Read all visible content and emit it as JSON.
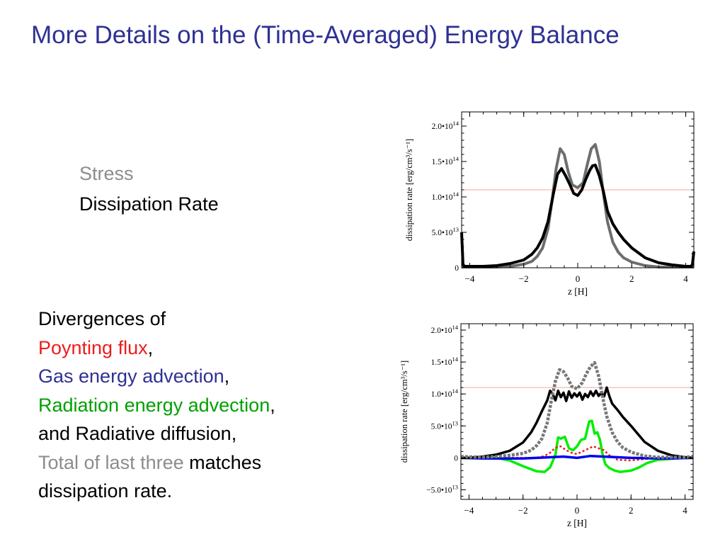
{
  "slide": {
    "title": "More Details on the (Time-Averaged) Energy Balance",
    "legend_top": {
      "stress": "Stress",
      "dissipation": "Dissipation Rate"
    },
    "legend_bottom": {
      "divergences_of": "Divergences of",
      "poynting": "Poynting flux",
      "gas": "Gas energy advection",
      "radiation": "Radiation energy advection",
      "comma": ",",
      "diffusion_line": "and Radiative diffusion,",
      "total": "Total of last three",
      "matches": " matches",
      "dissipation_rate": "dissipation rate."
    }
  },
  "chart_data": [
    {
      "type": "line",
      "xlabel": "z [H]",
      "ylabel": "dissipation rate [erg/cm³/s⁻¹]",
      "xlim": [
        -4.3,
        4.3
      ],
      "ylim": [
        0,
        220000000000000.0
      ],
      "xticks": [
        -4,
        -2,
        0,
        2,
        4
      ],
      "xtick_labels": [
        "−4",
        "−2",
        "0",
        "2",
        "4"
      ],
      "yticks": [
        0,
        50000000000000.0,
        100000000000000.0,
        150000000000000.0,
        200000000000000.0
      ],
      "ytick_labels": [
        {
          "mantissa": "0",
          "exp": ""
        },
        {
          "mantissa": "5.0•10",
          "exp": "13"
        },
        {
          "mantissa": "1.0•10",
          "exp": "14"
        },
        {
          "mantissa": "1.5•10",
          "exp": "14"
        },
        {
          "mantissa": "2.0•10",
          "exp": "14"
        }
      ],
      "reference_line": {
        "y": 110000000000000.0,
        "color": "#f4a7a3"
      },
      "series": [
        {
          "color": "#6e6e6e",
          "width": 4,
          "x": [
            -4.3,
            -3.5,
            -3.0,
            -2.5,
            -2.0,
            -1.7,
            -1.5,
            -1.3,
            -1.1,
            -0.95,
            -0.8,
            -0.65,
            -0.5,
            -0.35,
            -0.2,
            0.0,
            0.2,
            0.35,
            0.5,
            0.65,
            0.8,
            0.95,
            1.1,
            1.3,
            1.5,
            1.7,
            2.0,
            2.5,
            3.0,
            3.5,
            4.1,
            4.3
          ],
          "y": [
            1000000000000.0,
            1000000000000.0,
            1000000000000.0,
            2000000000000.0,
            5000000000000.0,
            9000000000000.0,
            16000000000000.0,
            28000000000000.0,
            55000000000000.0,
            95000000000000.0,
            140000000000000.0,
            168000000000000.0,
            160000000000000.0,
            135000000000000.0,
            117000000000000.0,
            113000000000000.0,
            120000000000000.0,
            145000000000000.0,
            168000000000000.0,
            174000000000000.0,
            150000000000000.0,
            105000000000000.0,
            65000000000000.0,
            36000000000000.0,
            22000000000000.0,
            14000000000000.0,
            8000000000000.0,
            3000000000000.0,
            1000000000000.0,
            1000000000000.0,
            1000000000000.0,
            1000000000000.0
          ]
        },
        {
          "color": "#000000",
          "width": 4,
          "x": [
            -4.3,
            -4.25,
            -4.2,
            -3.5,
            -3.0,
            -2.5,
            -2.0,
            -1.7,
            -1.5,
            -1.3,
            -1.1,
            -0.9,
            -0.75,
            -0.6,
            -0.45,
            -0.3,
            -0.15,
            0.0,
            0.15,
            0.3,
            0.45,
            0.55,
            0.65,
            0.8,
            0.95,
            1.1,
            1.3,
            1.5,
            1.7,
            2.0,
            2.5,
            3.0,
            3.5,
            4.0,
            4.2,
            4.25,
            4.3
          ],
          "y": [
            50000000000000.0,
            5000000000000.0,
            2000000000000.0,
            2000000000000.0,
            3000000000000.0,
            6000000000000.0,
            11000000000000.0,
            19000000000000.0,
            28000000000000.0,
            42000000000000.0,
            65000000000000.0,
            105000000000000.0,
            132000000000000.0,
            140000000000000.0,
            130000000000000.0,
            118000000000000.0,
            105000000000000.0,
            102000000000000.0,
            110000000000000.0,
            125000000000000.0,
            138000000000000.0,
            144000000000000.0,
            145000000000000.0,
            130000000000000.0,
            108000000000000.0,
            80000000000000.0,
            62000000000000.0,
            50000000000000.0,
            40000000000000.0,
            28000000000000.0,
            14000000000000.0,
            7000000000000.0,
            4000000000000.0,
            2000000000000.0,
            2000000000000.0,
            5000000000000.0,
            23000000000000.0
          ]
        }
      ]
    },
    {
      "type": "line",
      "xlabel": "z [H]",
      "ylabel": "dissipation rate [erg/cm³/s⁻¹]",
      "xlim": [
        -4.3,
        4.3
      ],
      "ylim": [
        -65000000000000.0,
        210000000000000.0
      ],
      "xticks": [
        -4,
        -2,
        0,
        2,
        4
      ],
      "xtick_labels": [
        "−4",
        "−2",
        "0",
        "2",
        "4"
      ],
      "yticks": [
        -50000000000000.0,
        0,
        50000000000000.0,
        100000000000000.0,
        150000000000000.0,
        200000000000000.0
      ],
      "ytick_labels": [
        {
          "mantissa": "−5.0•10",
          "exp": "13"
        },
        {
          "mantissa": "0",
          "exp": ""
        },
        {
          "mantissa": "5.0•10",
          "exp": "13"
        },
        {
          "mantissa": "1.0•10",
          "exp": "14"
        },
        {
          "mantissa": "1.5•10",
          "exp": "14"
        },
        {
          "mantissa": "2.0•10",
          "exp": "14"
        }
      ],
      "reference_line": {
        "y": 110000000000000.0,
        "color": "#f4a7a3"
      },
      "series": [
        {
          "color": "#00ee00",
          "width": 3.5,
          "x": [
            -4.3,
            -3.0,
            -2.5,
            -2.0,
            -1.5,
            -1.2,
            -1.0,
            -0.8,
            -0.7,
            -0.6,
            -0.45,
            -0.3,
            -0.15,
            0.0,
            0.15,
            0.3,
            0.45,
            0.55,
            0.65,
            0.75,
            0.85,
            0.95,
            1.05,
            1.2,
            1.4,
            1.6,
            1.8,
            2.0,
            2.3,
            2.6,
            3.0,
            3.3,
            3.6,
            4.0,
            4.3
          ],
          "y": [
            0,
            0,
            -4000000000000.0,
            -13000000000000.0,
            -21000000000000.0,
            -22000000000000.0,
            -15000000000000.0,
            5000000000000.0,
            32000000000000.0,
            30000000000000.0,
            33000000000000.0,
            15000000000000.0,
            12000000000000.0,
            18000000000000.0,
            28000000000000.0,
            30000000000000.0,
            57000000000000.0,
            58000000000000.0,
            38000000000000.0,
            40000000000000.0,
            28000000000000.0,
            5000000000000.0,
            -10000000000000.0,
            -16000000000000.0,
            -20000000000000.0,
            -22000000000000.0,
            -21000000000000.0,
            -20000000000000.0,
            -15000000000000.0,
            -8000000000000.0,
            -3000000000000.0,
            -2000000000000.0,
            -1000000000000.0,
            0,
            0
          ]
        },
        {
          "color": "#ee1c1c",
          "width": 2.5,
          "dash": "3,3",
          "x": [
            -4.3,
            -3.0,
            -2.0,
            -1.5,
            -1.2,
            -1.0,
            -0.8,
            -0.6,
            -0.4,
            -0.2,
            0.0,
            0.2,
            0.4,
            0.6,
            0.8,
            1.0,
            1.2,
            1.5,
            2.0,
            3.0,
            4.3
          ],
          "y": [
            2000000000000.0,
            0,
            0,
            0,
            3000000000000.0,
            8000000000000.0,
            16000000000000.0,
            18000000000000.0,
            12000000000000.0,
            8000000000000.0,
            6000000000000.0,
            10000000000000.0,
            14000000000000.0,
            18000000000000.0,
            15000000000000.0,
            12000000000000.0,
            4000000000000.0,
            -3000000000000.0,
            -4000000000000.0,
            0,
            0
          ]
        },
        {
          "color": "#0000ee",
          "width": 3.5,
          "x": [
            -4.3,
            -3.5,
            -3.0,
            -2.0,
            -1.5,
            -1.0,
            -0.5,
            0.0,
            0.5,
            1.0,
            1.5,
            2.0,
            3.0,
            3.5,
            4.3
          ],
          "y": [
            0,
            -1000000000000.0,
            -1000000000000.0,
            -1000000000000.0,
            0,
            1000000000000.0,
            2000000000000.0,
            0,
            3000000000000.0,
            2000000000000.0,
            1000000000000.0,
            0,
            -1000000000000.0,
            -1000000000000.0,
            0
          ]
        },
        {
          "color": "#000000",
          "width": 3.5,
          "x": [
            -4.3,
            -4.0,
            -3.5,
            -3.0,
            -2.5,
            -2.0,
            -1.7,
            -1.5,
            -1.3,
            -1.1,
            -1.0,
            -0.9,
            -0.8,
            -0.7,
            -0.6,
            -0.5,
            -0.4,
            -0.3,
            -0.2,
            -0.1,
            0.0,
            0.1,
            0.2,
            0.3,
            0.4,
            0.5,
            0.6,
            0.7,
            0.8,
            0.9,
            1.0,
            1.1,
            1.2,
            1.3,
            1.5,
            1.7,
            2.0,
            2.5,
            3.0,
            3.5,
            4.0,
            4.3
          ],
          "y": [
            0,
            0,
            2000000000000.0,
            5000000000000.0,
            11000000000000.0,
            24000000000000.0,
            40000000000000.0,
            55000000000000.0,
            73000000000000.0,
            90000000000000.0,
            105000000000000.0,
            100000000000000.0,
            90000000000000.0,
            105000000000000.0,
            95000000000000.0,
            102000000000000.0,
            89000000000000.0,
            104000000000000.0,
            94000000000000.0,
            101000000000000.0,
            96000000000000.0,
            102000000000000.0,
            91000000000000.0,
            100000000000000.0,
            95000000000000.0,
            104000000000000.0,
            97000000000000.0,
            105000000000000.0,
            97000000000000.0,
            102000000000000.0,
            96000000000000.0,
            110000000000000.0,
            96000000000000.0,
            85000000000000.0,
            75000000000000.0,
            64000000000000.0,
            50000000000000.0,
            25000000000000.0,
            11000000000000.0,
            4000000000000.0,
            1000000000000.0,
            0
          ]
        },
        {
          "color": "#777777",
          "width": 4.5,
          "dash": "4,2",
          "x": [
            -4.3,
            -3.5,
            -3.0,
            -2.5,
            -2.0,
            -1.7,
            -1.5,
            -1.3,
            -1.1,
            -0.95,
            -0.8,
            -0.65,
            -0.5,
            -0.35,
            -0.2,
            0.0,
            0.2,
            0.35,
            0.5,
            0.65,
            0.8,
            0.95,
            1.1,
            1.3,
            1.5,
            1.7,
            2.0,
            2.5,
            3.0,
            3.5,
            4.0,
            4.3
          ],
          "y": [
            2000000000000.0,
            1000000000000.0,
            2000000000000.0,
            4000000000000.0,
            7000000000000.0,
            12000000000000.0,
            19000000000000.0,
            30000000000000.0,
            55000000000000.0,
            90000000000000.0,
            120000000000000.0,
            138000000000000.0,
            135000000000000.0,
            125000000000000.0,
            112000000000000.0,
            108000000000000.0,
            118000000000000.0,
            132000000000000.0,
            143000000000000.0,
            149000000000000.0,
            128000000000000.0,
            95000000000000.0,
            65000000000000.0,
            40000000000000.0,
            25000000000000.0,
            16000000000000.0,
            9000000000000.0,
            3000000000000.0,
            1000000000000.0,
            1000000000000.0,
            1000000000000.0,
            2000000000000.0
          ]
        }
      ]
    }
  ]
}
